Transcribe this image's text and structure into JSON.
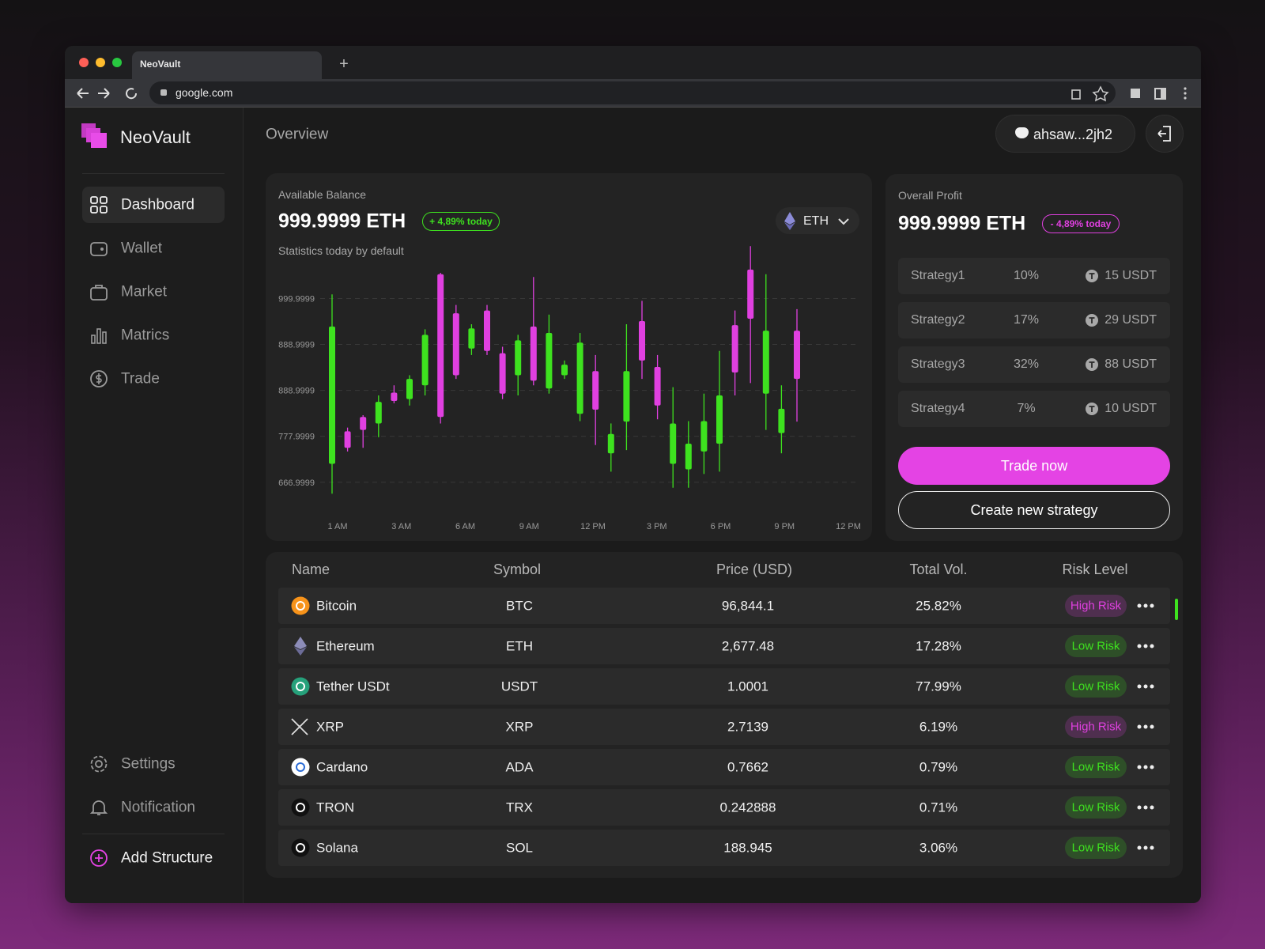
{
  "browser": {
    "tab_title": "NeoVault",
    "url": "google.com"
  },
  "sidebar": {
    "brand": "NeoVault",
    "nav": [
      "Dashboard",
      "Wallet",
      "Market",
      "Matrics",
      "Trade"
    ],
    "bottom": [
      "Settings",
      "Notification"
    ],
    "add": "Add Structure"
  },
  "header": {
    "title": "Overview",
    "user": "ahsaw...2jh2"
  },
  "balance": {
    "label": "Available Balance",
    "amount": "999.9999 ETH",
    "change": "+ 4,89% today",
    "currency": "ETH",
    "subtitle": "Statistics today by default"
  },
  "chart_data": {
    "type": "candlestick",
    "x_labels": [
      "1 AM",
      "3 AM",
      "6 AM",
      "9 AM",
      "12 PM",
      "3 PM",
      "6 PM",
      "9 PM",
      "12 PM"
    ],
    "ylim": [
      -0.4,
      5.3
    ],
    "yticks": [
      {
        "value": 4,
        "label": "999.9999"
      },
      {
        "value": 3,
        "label": "888.9999"
      },
      {
        "value": 2,
        "label": "888.9999"
      },
      {
        "value": 1,
        "label": "777.9999"
      },
      {
        "value": 0,
        "label": "666.9999"
      }
    ],
    "grid": true,
    "up_color": "#3ee21f",
    "down_color": "#e040e0",
    "open": [
      0.4,
      1.11,
      1.42,
      1.28,
      1.95,
      1.81,
      2.11,
      4.53,
      3.68,
      2.91,
      3.74,
      2.81,
      2.33,
      3.39,
      2.04,
      2.33,
      1.49,
      2.42,
      0.63,
      1.32,
      3.51,
      2.51,
      0.4,
      0.28,
      0.67,
      0.84,
      3.42,
      4.63,
      1.93,
      1.07,
      3.3
    ],
    "close": [
      3.39,
      0.75,
      1.14,
      1.75,
      1.77,
      2.25,
      3.21,
      1.42,
      2.33,
      3.35,
      2.86,
      1.93,
      3.09,
      2.21,
      3.25,
      2.56,
      3.04,
      1.58,
      1.05,
      2.42,
      2.65,
      1.67,
      1.28,
      0.84,
      1.33,
      1.89,
      2.39,
      3.56,
      3.3,
      1.6,
      2.25
    ],
    "high": [
      4.09,
      1.19,
      1.46,
      1.89,
      2.11,
      2.33,
      3.33,
      4.56,
      3.86,
      3.44,
      3.86,
      2.95,
      3.21,
      4.47,
      3.65,
      2.65,
      3.25,
      2.77,
      1.28,
      3.44,
      3.95,
      2.77,
      2.07,
      1.33,
      1.93,
      2.86,
      3.74,
      5.14,
      4.53,
      2.11,
      3.77
    ],
    "low": [
      -0.25,
      0.67,
      0.75,
      0.98,
      1.72,
      1.67,
      1.89,
      1.28,
      2.25,
      2.77,
      2.77,
      1.81,
      1.89,
      2.11,
      1.93,
      2.25,
      1.33,
      0.81,
      0.23,
      0.7,
      2.25,
      1.37,
      -0.12,
      -0.12,
      0.18,
      0.23,
      1.89,
      2.16,
      1.14,
      0.63,
      1.32
    ]
  },
  "profit": {
    "label": "Overall Profit",
    "amount": "999.9999 ETH",
    "change": "- 4,89% today",
    "strategies": [
      {
        "name": "Strategy1",
        "percent": "10%",
        "amount": "15 USDT"
      },
      {
        "name": "Strategy2",
        "percent": "17%",
        "amount": "29 USDT"
      },
      {
        "name": "Strategy3",
        "percent": "32%",
        "amount": "88 USDT"
      },
      {
        "name": "Strategy4",
        "percent": "7%",
        "amount": "10 USDT"
      }
    ],
    "primary_button": "Trade now",
    "secondary_button": "Create new strategy"
  },
  "table": {
    "columns": [
      "Name",
      "Symbol",
      "Price (USD)",
      "Total Vol.",
      "Risk Level"
    ],
    "rows": [
      {
        "name": "Bitcoin",
        "symbol": "BTC",
        "price": "96,844.1",
        "volume": "25.82%",
        "risk": "High Risk",
        "risk_color": "#e040e0"
      },
      {
        "name": "Ethereum",
        "symbol": "ETH",
        "price": "2,677.48",
        "volume": "17.28%",
        "risk": "Low Risk",
        "risk_color": "#3ee21f"
      },
      {
        "name": "Tether USDt",
        "symbol": "USDT",
        "price": "1.0001",
        "volume": "77.99%",
        "risk": "Low Risk",
        "risk_color": "#3ee21f"
      },
      {
        "name": "XRP",
        "symbol": "XRP",
        "price": "2.7139",
        "volume": "6.19%",
        "risk": "High Risk",
        "risk_color": "#e040e0"
      },
      {
        "name": "Cardano",
        "symbol": "ADA",
        "price": "0.7662",
        "volume": "0.79%",
        "risk": "Low Risk",
        "risk_color": "#3ee21f"
      },
      {
        "name": "TRON",
        "symbol": "TRX",
        "price": "0.242888",
        "volume": "0.71%",
        "risk": "Low Risk",
        "risk_color": "#3ee21f"
      },
      {
        "name": "Solana",
        "symbol": "SOL",
        "price": "188.945",
        "volume": "3.06%",
        "risk": "Low Risk",
        "risk_color": "#3ee21f"
      }
    ]
  }
}
